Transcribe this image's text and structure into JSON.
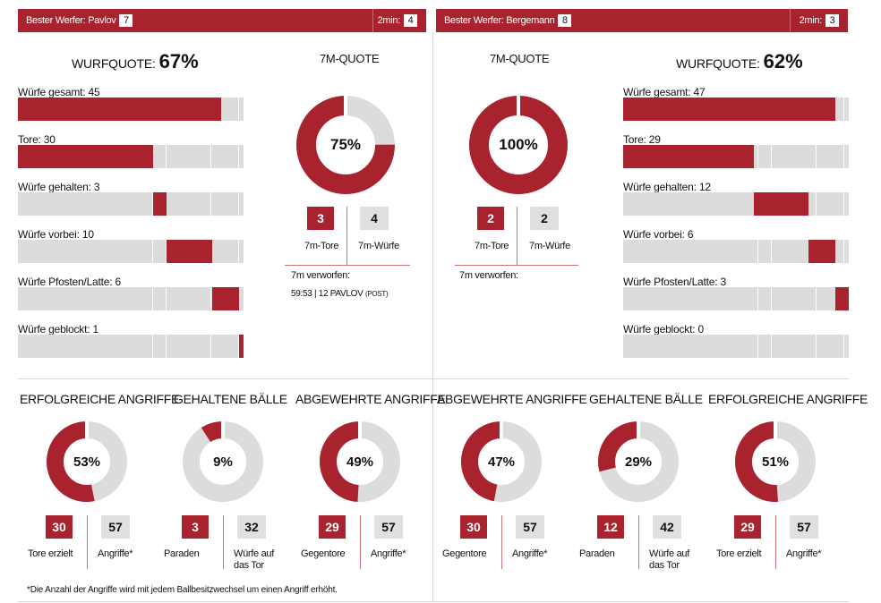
{
  "top_left": {
    "best_label": "Bester Werfer: Pavlov",
    "best_value": "7",
    "two_min_label": "2min:",
    "two_min_value": "4"
  },
  "top_right": {
    "best_label": "Bester Werfer: Bergemann",
    "best_value": "8",
    "two_min_label": "2min:",
    "two_min_value": "3"
  },
  "left": {
    "wurfquote_label": "Wurfquote:",
    "wurfquote_value": "67%",
    "stats": [
      {
        "label": "Würfe gesamt: 45",
        "start": 0,
        "value": 45
      },
      {
        "label": "Tore: 30",
        "start": 0,
        "value": 30
      },
      {
        "label": "Würfe gehalten: 3",
        "start": 30,
        "value": 3
      },
      {
        "label": "Würfe vorbei: 10",
        "start": 33,
        "value": 10
      },
      {
        "label": "Würfe Pfosten/Latte: 6",
        "start": 43,
        "value": 6
      },
      {
        "label": "Würfe geblockt: 1",
        "start": 49,
        "value": 1
      }
    ],
    "seven_m": {
      "title": "7m-Quote",
      "percent": 75,
      "percent_label": "75%",
      "tore_value": "3",
      "wuerfe_value": "4",
      "tore_label": "7m-Tore",
      "wuerfe_label": "7m-Würfe",
      "verworfen_label": "7m verworfen:",
      "verworfen_entry": "59:53 | 12 PAVLOV",
      "verworfen_suffix": "(POST)"
    }
  },
  "right": {
    "wurfquote_label": "Wurfquote:",
    "wurfquote_value": "62%",
    "stats": [
      {
        "label": "Würfe gesamt: 47",
        "start": 0,
        "value": 47
      },
      {
        "label": "Tore: 29",
        "start": 0,
        "value": 29
      },
      {
        "label": "Würfe gehalten: 12",
        "start": 29,
        "value": 12
      },
      {
        "label": "Würfe vorbei: 6",
        "start": 41,
        "value": 6
      },
      {
        "label": "Würfe Pfosten/Latte: 3",
        "start": 47,
        "value": 3
      },
      {
        "label": "Würfe geblockt: 0",
        "start": 50,
        "value": 0
      }
    ],
    "seven_m": {
      "title": "7m-Quote",
      "percent": 100,
      "percent_label": "100%",
      "tore_value": "2",
      "wuerfe_value": "2",
      "tore_label": "7m-Tore",
      "wuerfe_label": "7m-Würfe",
      "verworfen_label": "7m verworfen:"
    }
  },
  "bottom": [
    {
      "title": "Erfolgreiche Angriffe",
      "percent": 53,
      "percent_label": "53%",
      "a_value": "30",
      "b_value": "57",
      "a_label": "Tore erzielt",
      "b_label": "Angriffe*"
    },
    {
      "title": "Gehaltene Bälle",
      "percent": 9,
      "percent_label": "9%",
      "a_value": "3",
      "b_value": "32",
      "a_label": "Paraden",
      "b_label": "Würfe auf das Tor"
    },
    {
      "title": "Abgewehrte Angriffe",
      "percent": 49,
      "percent_label": "49%",
      "a_value": "29",
      "b_value": "57",
      "a_label": "Gegentore",
      "b_label": "Angriffe*"
    },
    {
      "title": "Abgewehrte Angriffe",
      "percent": 47,
      "percent_label": "47%",
      "a_value": "30",
      "b_value": "57",
      "a_label": "Gegentore",
      "b_label": "Angriffe*"
    },
    {
      "title": "Gehaltene Bälle",
      "percent": 29,
      "percent_label": "29%",
      "a_value": "12",
      "b_value": "42",
      "a_label": "Paraden",
      "b_label": "Würfe auf das Tor"
    },
    {
      "title": "Erfolgreiche Angriffe",
      "percent": 51,
      "percent_label": "51%",
      "a_value": "29",
      "b_value": "57",
      "a_label": "Tore erzielt",
      "b_label": "Angriffe*"
    }
  ],
  "footnote": "*Die Anzahl der Angriffe wird mit jedem Ballbesitzwechsel um einen Angriff erhöht.",
  "colors": {
    "accent": "#a8232e",
    "track": "#dcdcdc"
  },
  "bar_scale_max": 50
}
